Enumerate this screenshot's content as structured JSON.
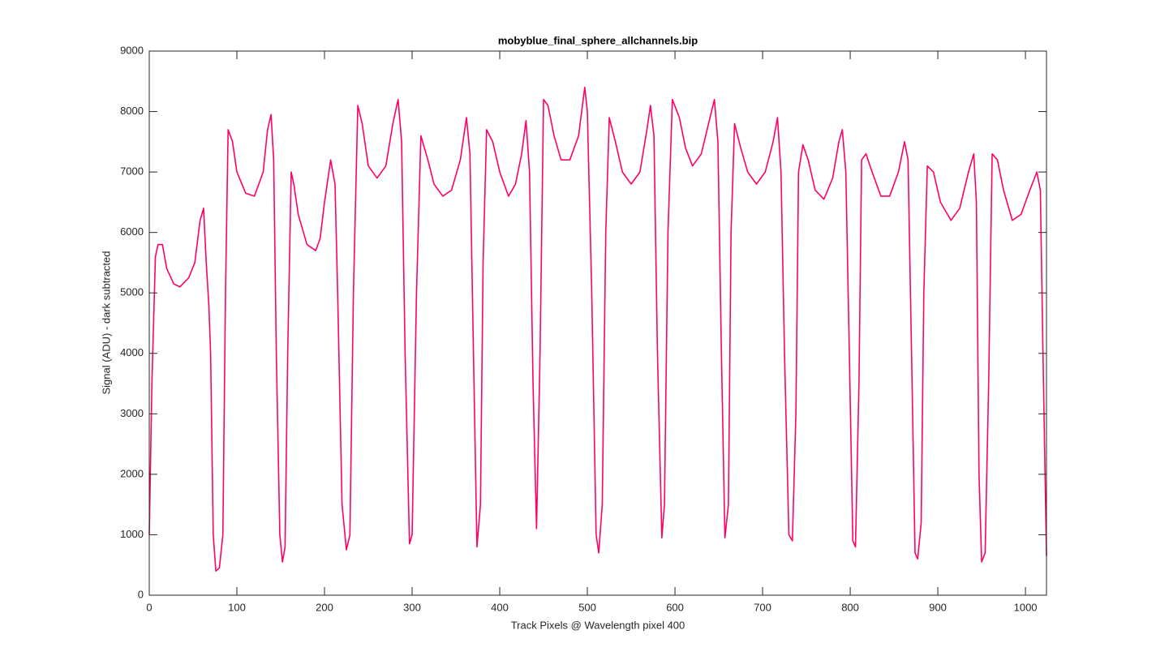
{
  "chart_data": {
    "type": "line",
    "title": "mobyblue_final_sphere_allchannels.bip",
    "xlabel": "Track Pixels @ Wavelength pixel 400",
    "ylabel": "Signal (ADU) - dark subtracted",
    "xlim": [
      0,
      1024
    ],
    "ylim": [
      0,
      9000
    ],
    "xticks": [
      0,
      100,
      200,
      300,
      400,
      500,
      600,
      700,
      800,
      900,
      1000
    ],
    "yticks": [
      0,
      1000,
      2000,
      3000,
      4000,
      5000,
      6000,
      7000,
      8000,
      9000
    ],
    "grid": false,
    "x": [
      0,
      3,
      7,
      10,
      15,
      20,
      28,
      35,
      45,
      52,
      58,
      62,
      65,
      68,
      70,
      73,
      76,
      80,
      84,
      87,
      90,
      95,
      100,
      110,
      120,
      130,
      135,
      139,
      142,
      145,
      149,
      152,
      155,
      158,
      162,
      165,
      170,
      180,
      190,
      195,
      200,
      207,
      212,
      215,
      220,
      225,
      229,
      233,
      238,
      243,
      250,
      260,
      270,
      278,
      284,
      288,
      292,
      297,
      300,
      305,
      310,
      318,
      325,
      335,
      345,
      355,
      362,
      366,
      370,
      374,
      378,
      381,
      385,
      392,
      400,
      410,
      418,
      425,
      430,
      434,
      438,
      442,
      446,
      450,
      455,
      462,
      470,
      480,
      490,
      497,
      500,
      505,
      510,
      513,
      517,
      521,
      525,
      532,
      540,
      550,
      560,
      568,
      572,
      576,
      580,
      585,
      588,
      592,
      597,
      605,
      612,
      620,
      630,
      640,
      645,
      649,
      653,
      657,
      661,
      664,
      668,
      675,
      683,
      693,
      703,
      712,
      717,
      721,
      725,
      730,
      734,
      738,
      741,
      746,
      752,
      760,
      770,
      780,
      787,
      791,
      795,
      799,
      803,
      806,
      810,
      813,
      818,
      825,
      835,
      845,
      855,
      862,
      866,
      870,
      874,
      877,
      881,
      884,
      888,
      895,
      903,
      915,
      925,
      935,
      941,
      944,
      947,
      950,
      954,
      958,
      962,
      968,
      975,
      985,
      995,
      1005,
      1013,
      1017,
      1020,
      1024
    ],
    "series": [
      {
        "color": "#ff0066",
        "values": [
          1000,
          3500,
          5600,
          5800,
          5800,
          5400,
          5150,
          5100,
          5250,
          5500,
          6200,
          6400,
          5500,
          4800,
          4000,
          1000,
          400,
          450,
          1000,
          5000,
          7700,
          7500,
          7000,
          6650,
          6600,
          7000,
          7700,
          7950,
          7200,
          4000,
          1000,
          550,
          800,
          4000,
          7000,
          6800,
          6300,
          5800,
          5700,
          5900,
          6500,
          7200,
          6800,
          5000,
          1500,
          750,
          1000,
          5000,
          8100,
          7800,
          7100,
          6900,
          7100,
          7800,
          8200,
          7500,
          4000,
          850,
          1000,
          5000,
          7600,
          7200,
          6800,
          6600,
          6700,
          7200,
          7900,
          7300,
          4000,
          800,
          1500,
          5500,
          7700,
          7500,
          7000,
          6600,
          6800,
          7300,
          7850,
          7000,
          3500,
          1100,
          4000,
          8200,
          8100,
          7600,
          7200,
          7200,
          7600,
          8400,
          8000,
          5000,
          1000,
          700,
          1500,
          6000,
          7900,
          7500,
          7000,
          6800,
          7000,
          7700,
          8100,
          7600,
          4000,
          950,
          1500,
          6000,
          8200,
          7900,
          7400,
          7100,
          7300,
          7900,
          8200,
          7500,
          4000,
          950,
          1500,
          6000,
          7800,
          7400,
          7000,
          6800,
          7000,
          7500,
          7900,
          7000,
          4000,
          1000,
          900,
          3000,
          7000,
          7450,
          7200,
          6700,
          6550,
          6900,
          7500,
          7700,
          7000,
          4000,
          900,
          800,
          3500,
          7200,
          7300,
          7000,
          6600,
          6600,
          7000,
          7500,
          7200,
          4000,
          700,
          600,
          1200,
          5000,
          7100,
          7000,
          6500,
          6200,
          6400,
          7000,
          7300,
          6500,
          2000,
          550,
          700,
          3500,
          7300,
          7200,
          6700,
          6200,
          6300,
          6700,
          7000,
          6700,
          4000,
          650
        ]
      }
    ]
  }
}
